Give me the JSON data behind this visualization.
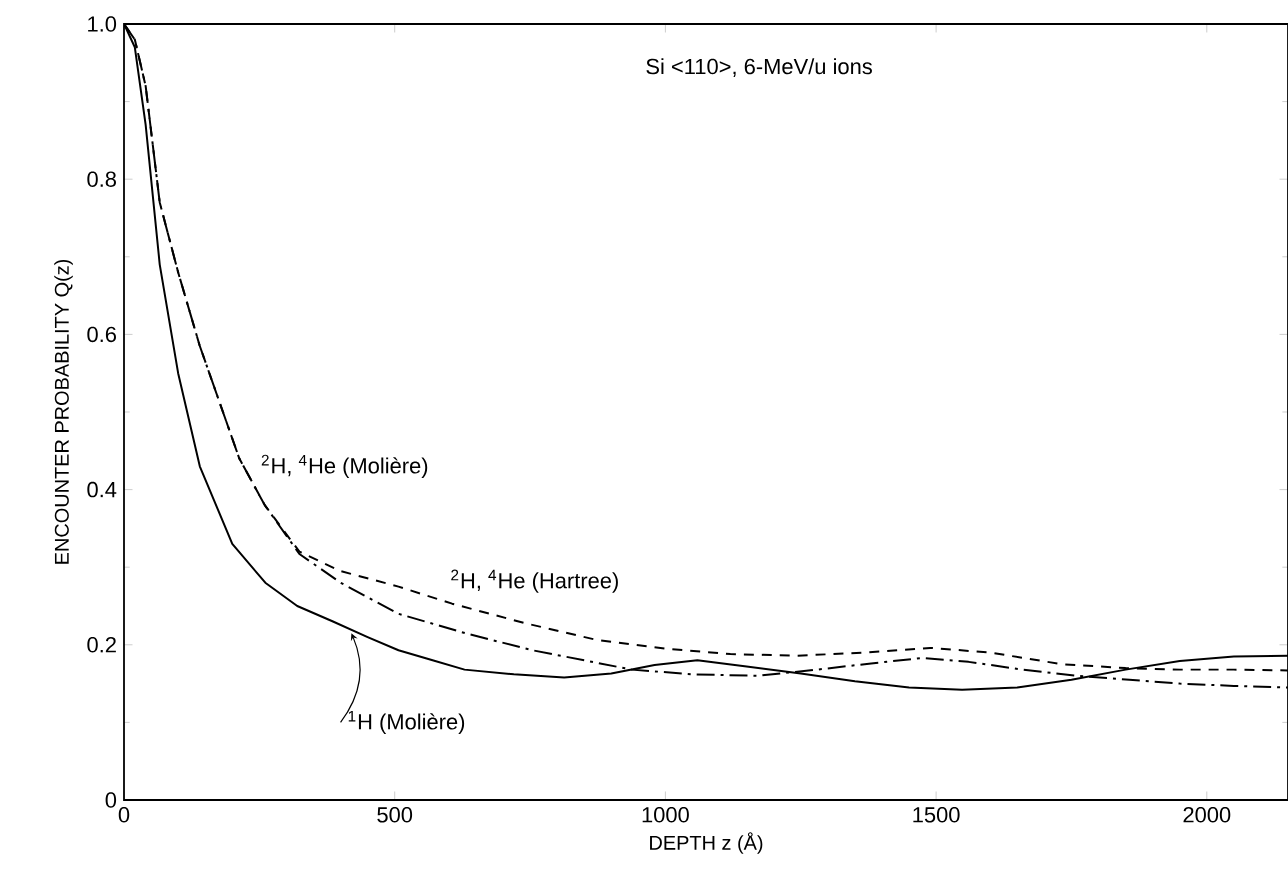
{
  "chart_data": {
    "type": "line",
    "xlabel": "DEPTH  z (Å)",
    "ylabel": "ENCOUNTER  PROBABILITY   Q(z)",
    "annotations": [
      "Si <110>,  6-MeV/u  ions"
    ],
    "xlim": [
      0,
      2150
    ],
    "ylim": [
      0,
      1.0
    ],
    "xticks": [
      0,
      500,
      1000,
      1500,
      2000
    ],
    "yticks": [
      0,
      {
        "value": 0.2,
        "label": "0.2"
      },
      {
        "value": 0.4,
        "label": "0.4"
      },
      {
        "value": 0.6,
        "label": "0.6"
      },
      {
        "value": 0.8,
        "label": "0.8"
      },
      {
        "value": 1.0,
        "label": "1.0"
      }
    ],
    "grid": false,
    "series": [
      {
        "name": "$^{1}$H (Molière)",
        "color": "#000000",
        "line_style": "solid",
        "x": [
          0,
          20,
          40,
          66,
          100,
          140,
          200,
          261,
          320,
          386,
          450,
          507,
          570,
          629,
          720,
          813,
          900,
          980,
          1059,
          1150,
          1250,
          1350,
          1450,
          1548,
          1650,
          1750,
          1850,
          1950,
          2050,
          2150
        ],
        "values": [
          1.0,
          0.97,
          0.87,
          0.69,
          0.55,
          0.43,
          0.33,
          0.28,
          0.25,
          0.23,
          0.21,
          0.193,
          0.18,
          0.168,
          0.162,
          0.158,
          0.163,
          0.174,
          0.18,
          0.172,
          0.163,
          0.153,
          0.145,
          0.142,
          0.145,
          0.155,
          0.168,
          0.179,
          0.185,
          0.186
        ]
      },
      {
        "name": "$^{2}$H, $^{4}$He (Molière)",
        "color": "#000000",
        "line_style": "dashdot",
        "x": [
          0,
          20,
          40,
          66,
          100,
          140,
          213,
          260,
          324,
          400,
          507,
          630,
          754,
          850,
          938,
          1050,
          1169,
          1280,
          1380,
          1474,
          1560,
          1660,
          1760,
          1857,
          1950,
          2050,
          2150
        ],
        "values": [
          1.0,
          0.98,
          0.92,
          0.77,
          0.68,
          0.585,
          0.44,
          0.38,
          0.317,
          0.28,
          0.24,
          0.215,
          0.193,
          0.18,
          0.168,
          0.162,
          0.16,
          0.168,
          0.176,
          0.183,
          0.178,
          0.168,
          0.16,
          0.155,
          0.15,
          0.147,
          0.145
        ]
      },
      {
        "name": "$^{2}$H, $^{4}$He (Hartree)",
        "color": "#000000",
        "line_style": "dashed",
        "x": [
          0,
          20,
          40,
          66,
          100,
          140,
          213,
          260,
          324,
          400,
          507,
          606,
          740,
          875,
          1000,
          1120,
          1243,
          1370,
          1489,
          1600,
          1732,
          1850,
          1950,
          2050,
          2150
        ],
        "values": [
          1.0,
          0.98,
          0.92,
          0.77,
          0.68,
          0.585,
          0.44,
          0.38,
          0.32,
          0.295,
          0.275,
          0.253,
          0.228,
          0.206,
          0.195,
          0.188,
          0.186,
          0.19,
          0.196,
          0.19,
          0.175,
          0.17,
          0.168,
          0.168,
          0.167
        ]
      }
    ]
  }
}
